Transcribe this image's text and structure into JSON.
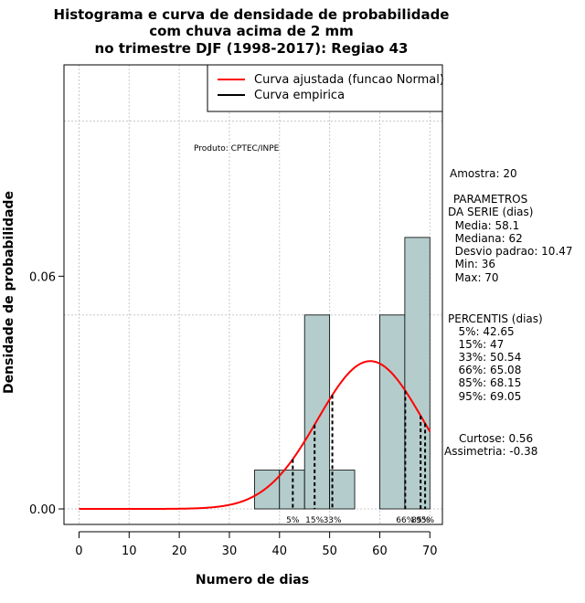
{
  "chart_data": {
    "type": "histogram",
    "title_lines": [
      "Histograma e curva de densidade de probabilidade",
      "com chuva acima de 2 mm",
      "no trimestre DJF (1998-2017): Regiao 43"
    ],
    "xlabel": "Numero de dias",
    "ylabel": "Densidade de probabilidade",
    "xlim": [
      -3,
      72.5
    ],
    "ylim": [
      -0.004,
      0.1145
    ],
    "x_ticks": [
      "0",
      "10",
      "20",
      "30",
      "40",
      "50",
      "60",
      "70"
    ],
    "x_tick_values": [
      0,
      10,
      20,
      30,
      40,
      50,
      60,
      70
    ],
    "y_ticks": [
      "0.00",
      "0.06"
    ],
    "y_tick_values": [
      0.0,
      0.06
    ],
    "grid": true,
    "grid_y_values": [
      0.0,
      0.05,
      0.1
    ],
    "bars": [
      {
        "x0": 35,
        "x1": 40,
        "density": 0.01
      },
      {
        "x0": 40,
        "x1": 45,
        "density": 0.01
      },
      {
        "x0": 45,
        "x1": 50,
        "density": 0.05
      },
      {
        "x0": 50,
        "x1": 55,
        "density": 0.01
      },
      {
        "x0": 55,
        "x1": 60,
        "density": 0.0
      },
      {
        "x0": 60,
        "x1": 65,
        "density": 0.05
      },
      {
        "x0": 65,
        "x1": 70,
        "density": 0.07
      }
    ],
    "bar_color": "#b4cccc",
    "normal_fit": {
      "mean": 58.1,
      "sd": 10.47,
      "color": "#ff0000",
      "x_range": [
        0,
        70
      ]
    },
    "percentile_lines": [
      {
        "value": 42.65,
        "label": "5%"
      },
      {
        "value": 47,
        "label": "15%"
      },
      {
        "value": 50.54,
        "label": "33%"
      },
      {
        "value": 65.08,
        "label": "66%"
      },
      {
        "value": 68.15,
        "label": "85%"
      },
      {
        "value": 69.05,
        "label": "95%"
      }
    ],
    "legend": {
      "position": "top-right",
      "entries": [
        {
          "label": "Curva ajustada (funcao Normal)",
          "color": "#ff0000"
        },
        {
          "label": "Curva empirica",
          "color": "#000000"
        }
      ]
    },
    "annotation": "Produto: CPTEC/INPE",
    "stats_panel": [
      "Amostra: 20",
      " PARAMETROS",
      "DA SERIE (dias)",
      "  Media: 58.1",
      "  Mediana: 62",
      "  Desvio padrao: 10.47",
      "  Min: 36",
      "  Max: 70",
      "PERCENTIS (dias)",
      "   5%: 42.65",
      "   15%: 47",
      "   33%: 50.54",
      "   66%: 65.08",
      "   85%: 68.15",
      "   95%: 69.05",
      "Curtose: 0.56",
      "Assimetria: -0.38"
    ]
  }
}
